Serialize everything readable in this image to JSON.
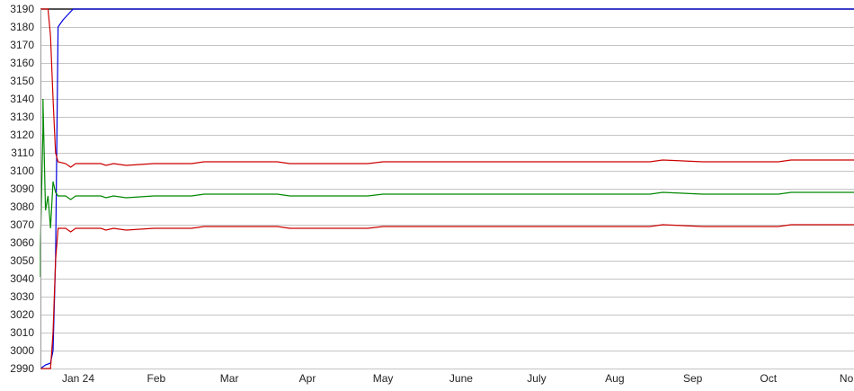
{
  "chart_data": {
    "type": "line",
    "title": "",
    "xlabel": "",
    "ylabel": "",
    "ylim": [
      2990,
      3190
    ],
    "xlim": [
      "2023-12-17",
      "2024-11-04"
    ],
    "grid": true,
    "legend": "none",
    "y_ticks": [
      "2990",
      "3000",
      "3010",
      "3020",
      "3030",
      "3040",
      "3050",
      "3060",
      "3070",
      "3080",
      "3090",
      "3100",
      "3110",
      "3120",
      "3130",
      "3140",
      "3150",
      "3160",
      "3170",
      "3180",
      "3190"
    ],
    "x_ticks": [
      {
        "date": "2024-01-01",
        "label": "Jan 24"
      },
      {
        "date": "2024-02-01",
        "label": "Feb"
      },
      {
        "date": "2024-03-01",
        "label": "Mar"
      },
      {
        "date": "2024-04-01",
        "label": "Apr"
      },
      {
        "date": "2024-05-01",
        "label": "May"
      },
      {
        "date": "2024-06-01",
        "label": "June"
      },
      {
        "date": "2024-07-01",
        "label": "July"
      },
      {
        "date": "2024-08-01",
        "label": "Aug"
      },
      {
        "date": "2024-09-01",
        "label": "Sep"
      },
      {
        "date": "2024-10-01",
        "label": "Oct"
      },
      {
        "date": "2024-11-01",
        "label": "No"
      }
    ],
    "series": [
      {
        "color": "#000000",
        "points": [
          [
            "2023-12-17",
            3190
          ],
          [
            "2024-11-04",
            3190
          ]
        ]
      },
      {
        "color": "#0000dd",
        "points": [
          [
            "2023-12-17",
            2990
          ],
          [
            "2023-12-19",
            2992
          ],
          [
            "2023-12-21",
            2993
          ],
          [
            "2023-12-22",
            3000
          ],
          [
            "2023-12-23",
            3050
          ],
          [
            "2023-12-24",
            3180
          ],
          [
            "2023-12-26",
            3184
          ],
          [
            "2023-12-28",
            3187
          ],
          [
            "2023-12-30",
            3190
          ],
          [
            "2024-11-04",
            3190
          ]
        ]
      },
      {
        "color": "#cc0000",
        "points": [
          [
            "2023-12-17",
            3190
          ],
          [
            "2023-12-20",
            3190
          ],
          [
            "2023-12-21",
            3175
          ],
          [
            "2023-12-22",
            3140
          ],
          [
            "2023-12-23",
            3110
          ],
          [
            "2023-12-24",
            3105
          ],
          [
            "2023-12-27",
            3104
          ],
          [
            "2023-12-29",
            3102
          ],
          [
            "2023-12-31",
            3104
          ],
          [
            "2024-01-10",
            3104
          ],
          [
            "2024-01-12",
            3103
          ],
          [
            "2024-01-15",
            3104
          ],
          [
            "2024-01-20",
            3103
          ],
          [
            "2024-01-31",
            3104
          ],
          [
            "2024-02-15",
            3104
          ],
          [
            "2024-02-20",
            3105
          ],
          [
            "2024-03-20",
            3105
          ],
          [
            "2024-03-25",
            3104
          ],
          [
            "2024-04-25",
            3104
          ],
          [
            "2024-05-01",
            3105
          ],
          [
            "2024-08-15",
            3105
          ],
          [
            "2024-08-20",
            3106
          ],
          [
            "2024-09-05",
            3105
          ],
          [
            "2024-10-05",
            3105
          ],
          [
            "2024-10-10",
            3106
          ],
          [
            "2024-11-04",
            3106
          ]
        ]
      },
      {
        "color": "#008800",
        "points": [
          [
            "2023-12-17",
            3041
          ],
          [
            "2023-12-17",
            3058
          ],
          [
            "2023-12-18",
            3124
          ],
          [
            "2023-12-18",
            3140
          ],
          [
            "2023-12-19",
            3078
          ],
          [
            "2023-12-20",
            3086
          ],
          [
            "2023-12-21",
            3068
          ],
          [
            "2023-12-22",
            3094
          ],
          [
            "2023-12-23",
            3088
          ],
          [
            "2023-12-24",
            3086
          ],
          [
            "2023-12-27",
            3086
          ],
          [
            "2023-12-29",
            3084
          ],
          [
            "2023-12-31",
            3086
          ],
          [
            "2024-01-10",
            3086
          ],
          [
            "2024-01-12",
            3085
          ],
          [
            "2024-01-15",
            3086
          ],
          [
            "2024-01-20",
            3085
          ],
          [
            "2024-01-31",
            3086
          ],
          [
            "2024-02-15",
            3086
          ],
          [
            "2024-02-20",
            3087
          ],
          [
            "2024-03-20",
            3087
          ],
          [
            "2024-03-25",
            3086
          ],
          [
            "2024-04-25",
            3086
          ],
          [
            "2024-05-01",
            3087
          ],
          [
            "2024-08-15",
            3087
          ],
          [
            "2024-08-20",
            3088
          ],
          [
            "2024-09-05",
            3087
          ],
          [
            "2024-10-05",
            3087
          ],
          [
            "2024-10-10",
            3088
          ],
          [
            "2024-11-04",
            3088
          ]
        ]
      },
      {
        "color": "#cc0000",
        "points": [
          [
            "2023-12-17",
            2990
          ],
          [
            "2023-12-21",
            2990
          ],
          [
            "2023-12-22",
            3010
          ],
          [
            "2023-12-23",
            3050
          ],
          [
            "2023-12-24",
            3068
          ],
          [
            "2023-12-27",
            3068
          ],
          [
            "2023-12-29",
            3066
          ],
          [
            "2023-12-31",
            3068
          ],
          [
            "2024-01-10",
            3068
          ],
          [
            "2024-01-12",
            3067
          ],
          [
            "2024-01-15",
            3068
          ],
          [
            "2024-01-20",
            3067
          ],
          [
            "2024-01-31",
            3068
          ],
          [
            "2024-02-15",
            3068
          ],
          [
            "2024-02-20",
            3069
          ],
          [
            "2024-03-20",
            3069
          ],
          [
            "2024-03-25",
            3068
          ],
          [
            "2024-04-25",
            3068
          ],
          [
            "2024-05-01",
            3069
          ],
          [
            "2024-08-15",
            3069
          ],
          [
            "2024-08-20",
            3070
          ],
          [
            "2024-09-05",
            3069
          ],
          [
            "2024-10-05",
            3069
          ],
          [
            "2024-10-10",
            3070
          ],
          [
            "2024-11-04",
            3070
          ]
        ]
      }
    ]
  }
}
